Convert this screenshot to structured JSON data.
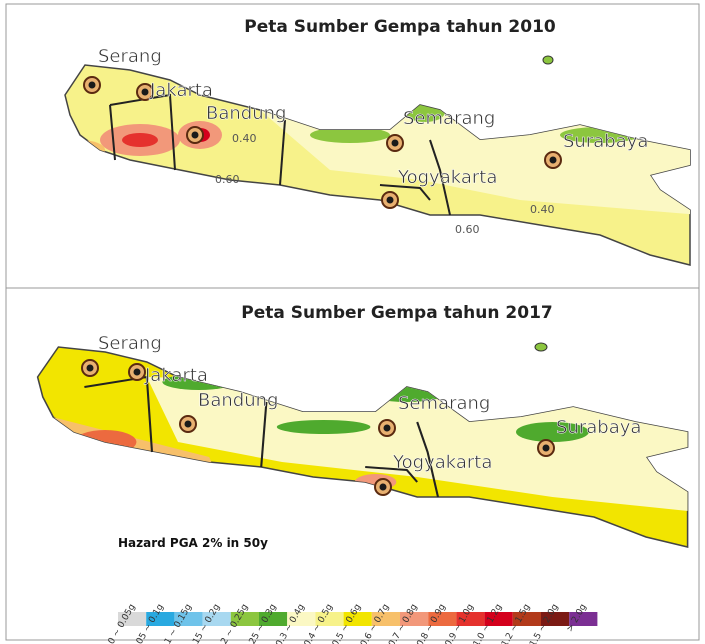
{
  "panels": [
    {
      "title": "Peta Sumber Gempa tahun 2010",
      "cities": [
        "Serang",
        "Jakarta",
        "Bandung",
        "Semarang",
        "Yogyakarta",
        "Surabaya"
      ],
      "contour_labels": [
        "0.40",
        "0.60",
        "0.40",
        "0.60"
      ]
    },
    {
      "title": "Peta Sumber Gempa tahun 2017",
      "cities": [
        "Serang",
        "Jakarta",
        "Bandung",
        "Semarang",
        "Yogyakarta",
        "Surabaya"
      ]
    }
  ],
  "legend": {
    "title": "Hazard PGA 2% in 50y",
    "items": [
      {
        "label": "0 ~ 0.05g",
        "color": "#d9d9d9"
      },
      {
        "label": "0.05 ~ 0.1g",
        "color": "#29a9e0"
      },
      {
        "label": "0.1 ~ 0.15g",
        "color": "#6fc3ea"
      },
      {
        "label": "0.15 ~ 0.2g",
        "color": "#a8d8f0"
      },
      {
        "label": "0.2 ~ 0.25g",
        "color": "#8cc63f"
      },
      {
        "label": "0.25 ~ 0.3g",
        "color": "#4faa2e"
      },
      {
        "label": "0.3 ~ 0.4g",
        "color": "#fbf8c4"
      },
      {
        "label": "0.4 ~ 0.5g",
        "color": "#f7f28a"
      },
      {
        "label": "0.5 ~ 0.6g",
        "color": "#f2e500"
      },
      {
        "label": "0.6 ~ 0.7g",
        "color": "#f7c06a"
      },
      {
        "label": "0.7 ~ 0.8g",
        "color": "#f2987a"
      },
      {
        "label": "0.8 ~ 0.9g",
        "color": "#ec6a3f"
      },
      {
        "label": "0.9 ~ 1.0g",
        "color": "#e5322d"
      },
      {
        "label": "1.0 ~ 1.2g",
        "color": "#d4001c"
      },
      {
        "label": "1.2 ~ 1.5g",
        "color": "#b23a1a"
      },
      {
        "label": "1.5 ~ 2.0g",
        "color": "#7b1a14"
      },
      {
        "label": "> 2.0g",
        "color": "#7b2f93"
      }
    ]
  }
}
